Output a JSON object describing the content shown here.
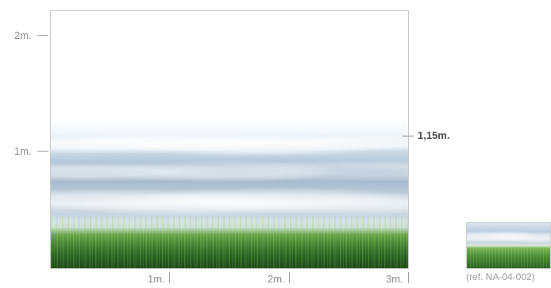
{
  "axes": {
    "left": {
      "top_label": "2m.",
      "middle_label": "1m."
    },
    "bottom": {
      "labels": [
        "1m.",
        "2m.",
        "3m."
      ]
    }
  },
  "measure": {
    "height_label": "1,15m."
  },
  "preview": {
    "reference": "(ref. NA-04-002)"
  },
  "colors": {
    "border": "#c9c9c9",
    "axis_text": "#8b8b8b",
    "tick": "#9e9e9e",
    "highlight_text": "#4b4b4b",
    "sky_top": "#ffffff",
    "sky_blue": "#9eb1c5",
    "grass_light": "#6aa34d",
    "grass_dark": "#245a1d"
  }
}
